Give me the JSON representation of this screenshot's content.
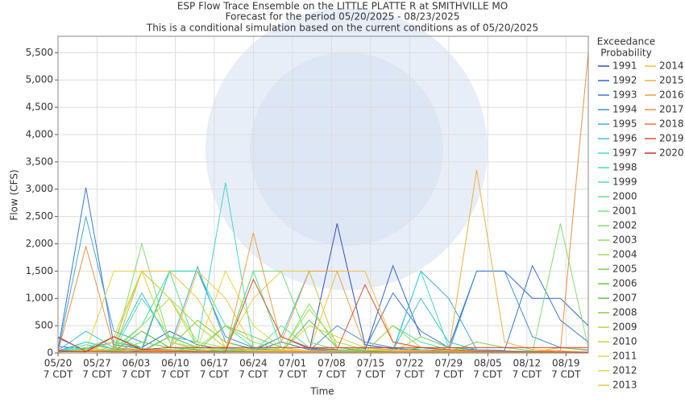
{
  "chart_data": {
    "type": "line",
    "title": "ESP Flow Trace Ensemble on the LITTLE PLATTE R at SMITHVILLE MO",
    "subtitle": "Forecast for the period 05/20/2025 - 08/23/2025",
    "subtitle2": "This is a conditional simulation based on the current conditions as of 05/20/2025",
    "x_label": "Time",
    "y_label": "Flow (CFS)",
    "legend_title_lines": [
      "Exceedance",
      "Probability"
    ],
    "grid": true,
    "xlim": [
      "2025-05-20",
      "2025-08-23"
    ],
    "xticks": [
      {
        "value": "2025-05-20",
        "label": "05/20",
        "sublabel": "7 CDT"
      },
      {
        "value": "2025-05-27",
        "label": "05/27",
        "sublabel": "7 CDT"
      },
      {
        "value": "2025-06-03",
        "label": "06/03",
        "sublabel": "7 CDT"
      },
      {
        "value": "2025-06-10",
        "label": "06/10",
        "sublabel": "7 CDT"
      },
      {
        "value": "2025-06-17",
        "label": "06/17",
        "sublabel": "7 CDT"
      },
      {
        "value": "2025-06-24",
        "label": "06/24",
        "sublabel": "7 CDT"
      },
      {
        "value": "2025-07-01",
        "label": "07/01",
        "sublabel": "7 CDT"
      },
      {
        "value": "2025-07-08",
        "label": "07/08",
        "sublabel": "7 CDT"
      },
      {
        "value": "2025-07-15",
        "label": "07/15",
        "sublabel": "7 CDT"
      },
      {
        "value": "2025-07-22",
        "label": "07/22",
        "sublabel": "7 CDT"
      },
      {
        "value": "2025-07-29",
        "label": "07/29",
        "sublabel": "7 CDT"
      },
      {
        "value": "2025-08-05",
        "label": "08/05",
        "sublabel": "7 CDT"
      },
      {
        "value": "2025-08-12",
        "label": "08/12",
        "sublabel": "7 CDT"
      },
      {
        "value": "2025-08-19",
        "label": "08/19",
        "sublabel": "7 CDT"
      }
    ],
    "ylim": [
      0,
      5800
    ],
    "yticks": [
      0,
      {
        "value": 500,
        "label": "500"
      },
      {
        "value": 1000,
        "label": "1,000"
      },
      {
        "value": 1500,
        "label": "1,500"
      },
      {
        "value": 2000,
        "label": "2,000"
      },
      {
        "value": 2500,
        "label": "2,500"
      },
      {
        "value": 3000,
        "label": "3,000"
      },
      {
        "value": 3500,
        "label": "3,500"
      },
      {
        "value": 4000,
        "label": "4,000"
      },
      {
        "value": 4500,
        "label": "4,500"
      },
      {
        "value": 5000,
        "label": "5,000"
      },
      {
        "value": 5500,
        "label": "5,500"
      }
    ],
    "x": [
      "2025-05-20",
      "2025-05-25",
      "2025-05-30",
      "2025-06-04",
      "2025-06-09",
      "2025-06-14",
      "2025-06-19",
      "2025-06-24",
      "2025-06-29",
      "2025-07-04",
      "2025-07-09",
      "2025-07-14",
      "2025-07-19",
      "2025-07-24",
      "2025-07-29",
      "2025-08-03",
      "2025-08-08",
      "2025-08-13",
      "2025-08-18",
      "2025-08-23"
    ],
    "series": [
      {
        "name": "1991",
        "color": "#3050c0",
        "values": [
          280,
          40,
          60,
          30,
          25,
          20,
          30,
          80,
          40,
          30,
          2370,
          150,
          80,
          60,
          40,
          30,
          20,
          20,
          15,
          10
        ]
      },
      {
        "name": "1992",
        "color": "#3366cc",
        "values": [
          120,
          80,
          200,
          100,
          400,
          150,
          60,
          40,
          300,
          80,
          60,
          40,
          1600,
          300,
          100,
          1500,
          1500,
          1000,
          1000,
          500
        ]
      },
      {
        "name": "1993",
        "color": "#3a78d0",
        "values": [
          60,
          3030,
          150,
          80,
          60,
          40,
          30,
          30,
          200,
          60,
          40,
          80,
          1100,
          400,
          100,
          60,
          50,
          1600,
          600,
          200
        ]
      },
      {
        "name": "1994",
        "color": "#4090d8",
        "values": [
          40,
          200,
          80,
          40,
          1500,
          1500,
          300,
          100,
          50,
          40,
          500,
          200,
          100,
          40,
          30,
          1500,
          1500,
          300,
          100,
          50
        ]
      },
      {
        "name": "1995",
        "color": "#40a8e0",
        "values": [
          30,
          2500,
          400,
          200,
          100,
          1580,
          200,
          80,
          60,
          40,
          30,
          100,
          50,
          1500,
          1000,
          60,
          40,
          30,
          20,
          20
        ]
      },
      {
        "name": "1996",
        "color": "#40c0e0",
        "values": [
          50,
          400,
          100,
          1100,
          200,
          100,
          80,
          60,
          300,
          1500,
          100,
          60,
          50,
          1000,
          200,
          60,
          40,
          30,
          20,
          20
        ]
      },
      {
        "name": "1997",
        "color": "#40d8d0",
        "values": [
          20,
          200,
          60,
          40,
          300,
          200,
          3120,
          100,
          60,
          40,
          30,
          20,
          20,
          1500,
          100,
          40,
          30,
          20,
          10,
          10
        ]
      },
      {
        "name": "1998",
        "color": "#40e0b0",
        "values": [
          20,
          150,
          80,
          500,
          1500,
          1500,
          500,
          100,
          40,
          30,
          20,
          20,
          500,
          200,
          60,
          40,
          30,
          20,
          10,
          10
        ]
      },
      {
        "name": "1999",
        "color": "#50e0a0",
        "values": [
          30,
          100,
          40,
          1000,
          300,
          100,
          60,
          1500,
          100,
          40,
          30,
          20,
          20,
          60,
          30,
          20,
          10,
          10,
          10,
          10
        ]
      },
      {
        "name": "2000",
        "color": "#60e090",
        "values": [
          20,
          80,
          300,
          100,
          1500,
          60,
          40,
          30,
          500,
          100,
          40,
          30,
          20,
          20,
          20,
          10,
          10,
          10,
          10,
          10
        ]
      },
      {
        "name": "2001",
        "color": "#70e080",
        "values": [
          20,
          60,
          200,
          80,
          60,
          40,
          30,
          1500,
          1500,
          200,
          60,
          40,
          30,
          20,
          20,
          10,
          10,
          10,
          10,
          10
        ]
      },
      {
        "name": "2002",
        "color": "#80e070",
        "values": [
          20,
          60,
          40,
          2000,
          200,
          60,
          40,
          30,
          20,
          900,
          100,
          40,
          30,
          20,
          20,
          10,
          10,
          10,
          2370,
          100
        ]
      },
      {
        "name": "2003",
        "color": "#90e060",
        "values": [
          20,
          50,
          30,
          60,
          40,
          100,
          500,
          200,
          60,
          40,
          30,
          20,
          20,
          300,
          100,
          40,
          20,
          10,
          10,
          10
        ]
      },
      {
        "name": "2004",
        "color": "#a0e050",
        "values": [
          20,
          40,
          30,
          500,
          1000,
          200,
          100,
          60,
          40,
          800,
          200,
          60,
          40,
          20,
          20,
          20,
          10,
          10,
          10,
          10
        ]
      },
      {
        "name": "2005",
        "color": "#80d040",
        "values": [
          20,
          50,
          40,
          80,
          60,
          40,
          500,
          300,
          100,
          40,
          30,
          20,
          20,
          20,
          20,
          200,
          100,
          40,
          20,
          10
        ]
      },
      {
        "name": "2006",
        "color": "#70c840",
        "values": [
          20,
          40,
          30,
          20,
          300,
          100,
          60,
          40,
          30,
          20,
          20,
          20,
          20,
          20,
          20,
          20,
          20,
          20,
          20,
          10
        ]
      },
      {
        "name": "2007",
        "color": "#60c040",
        "values": [
          20,
          40,
          30,
          400,
          100,
          60,
          40,
          30,
          20,
          600,
          100,
          40,
          30,
          20,
          20,
          20,
          20,
          20,
          20,
          10
        ]
      },
      {
        "name": "2008",
        "color": "#90c840",
        "values": [
          20,
          30,
          20,
          200,
          100,
          600,
          200,
          60,
          40,
          30,
          20,
          20,
          20,
          100,
          40,
          20,
          20,
          20,
          20,
          10
        ]
      },
      {
        "name": "2009",
        "color": "#b0d040",
        "values": [
          20,
          30,
          20,
          1500,
          1000,
          500,
          100,
          60,
          40,
          30,
          20,
          20,
          500,
          100,
          40,
          30,
          20,
          20,
          100,
          60
        ]
      },
      {
        "name": "2010",
        "color": "#c8d840",
        "values": [
          20,
          30,
          300,
          1500,
          1000,
          100,
          60,
          40,
          30,
          500,
          300,
          100,
          40,
          30,
          20,
          20,
          20,
          20,
          20,
          10
        ]
      },
      {
        "name": "2011",
        "color": "#e0d840",
        "values": [
          20,
          40,
          1500,
          1500,
          200,
          100,
          1500,
          500,
          100,
          40,
          30,
          20,
          20,
          30,
          20,
          20,
          20,
          20,
          20,
          10
        ]
      },
      {
        "name": "2012",
        "color": "#e8d040",
        "values": [
          20,
          40,
          100,
          60,
          40,
          30,
          100,
          1000,
          1500,
          1500,
          100,
          60,
          40,
          30,
          20,
          20,
          20,
          20,
          20,
          10
        ]
      },
      {
        "name": "2013",
        "color": "#f0c840",
        "values": [
          20,
          30,
          20,
          20,
          20,
          1500,
          1000,
          100,
          60,
          40,
          30,
          20,
          20,
          20,
          20,
          20,
          20,
          20,
          20,
          10
        ]
      },
      {
        "name": "2014",
        "color": "#f0c040",
        "values": [
          20,
          30,
          200,
          1500,
          1500,
          1000,
          100,
          60,
          40,
          30,
          1500,
          1500,
          200,
          100,
          60,
          40,
          30,
          20,
          20,
          10
        ]
      },
      {
        "name": "2015",
        "color": "#f0b040",
        "values": [
          20,
          30,
          20,
          20,
          20,
          20,
          20,
          20,
          20,
          20,
          20,
          20,
          20,
          20,
          20,
          3350,
          200,
          60,
          40,
          20
        ]
      },
      {
        "name": "2016",
        "color": "#f0a040",
        "values": [
          20,
          30,
          60,
          40,
          30,
          20,
          20,
          2200,
          200,
          1500,
          1500,
          100,
          60,
          40,
          30,
          20,
          20,
          20,
          20,
          10
        ]
      },
      {
        "name": "2017",
        "color": "#f09040",
        "values": [
          20,
          1950,
          100,
          60,
          40,
          30,
          20,
          20,
          20,
          20,
          20,
          20,
          20,
          20,
          20,
          20,
          20,
          20,
          50,
          5500
        ]
      },
      {
        "name": "2018",
        "color": "#f07040",
        "values": [
          20,
          30,
          300,
          60,
          40,
          30,
          20,
          20,
          20,
          20,
          20,
          20,
          20,
          20,
          20,
          20,
          20,
          20,
          20,
          10
        ]
      },
      {
        "name": "2019",
        "color": "#e05030",
        "values": [
          300,
          30,
          20,
          20,
          20,
          20,
          20,
          1350,
          300,
          100,
          60,
          1250,
          200,
          100,
          60,
          40,
          30,
          20,
          20,
          10
        ]
      },
      {
        "name": "2020",
        "color": "#d03020",
        "values": [
          40,
          20,
          300,
          60,
          100,
          100,
          100,
          100,
          100,
          100,
          100,
          100,
          100,
          100,
          100,
          100,
          100,
          100,
          100,
          100
        ]
      }
    ]
  }
}
